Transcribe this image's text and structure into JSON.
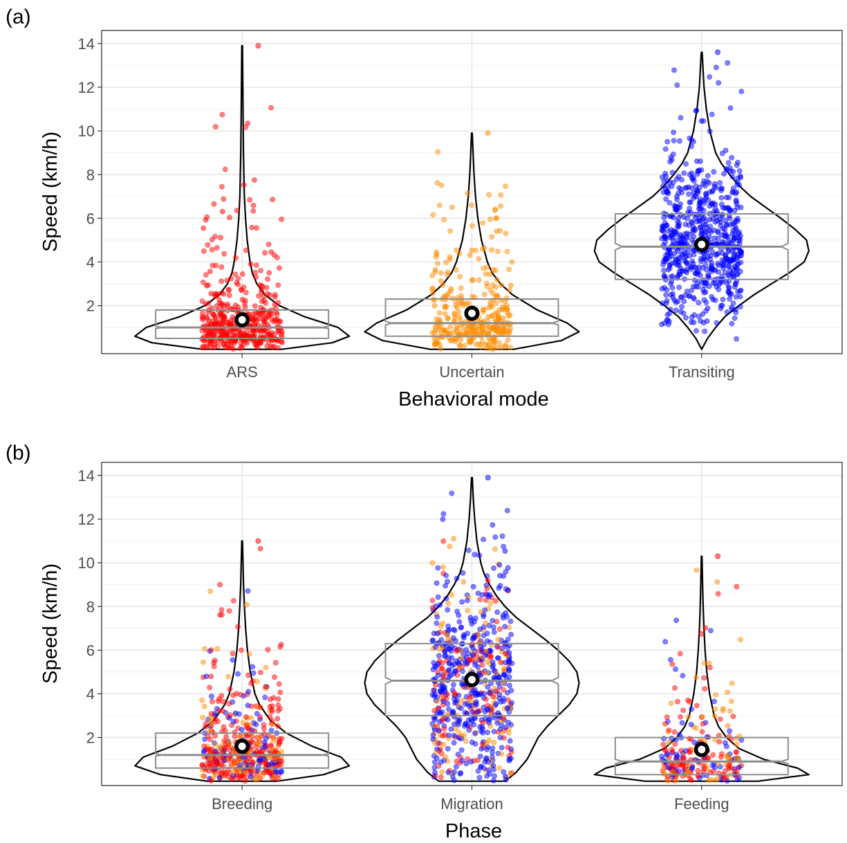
{
  "colors": {
    "ARS": "#ff0000",
    "Uncertain": "#ff8c00",
    "Transiting": "#0000ff",
    "box": "#8c8c8c",
    "violin": "#000000",
    "grid_major": "#e3e3e3",
    "grid_minor": "#f1f1f1"
  },
  "chart_data": [
    {
      "type": "violin",
      "panel_label": "(a)",
      "xlabel": "Behavioral mode",
      "ylabel": "Speed (km/h)",
      "ylim": [
        -0.2,
        14.6
      ],
      "yticks": [
        2,
        4,
        6,
        8,
        10,
        12,
        14
      ],
      "grid": true,
      "categories": [
        "ARS",
        "Uncertain",
        "Transiting"
      ],
      "groups": [
        {
          "category": "ARS",
          "mean": 1.35,
          "box": {
            "q1": 0.5,
            "median": 1.0,
            "q3": 1.8,
            "notch_low": 0.95,
            "notch_high": 1.05
          },
          "violin_profile": [
            [
              0.0,
              0.35
            ],
            [
              0.3,
              0.8
            ],
            [
              0.6,
              0.95
            ],
            [
              1.0,
              0.85
            ],
            [
              1.5,
              0.55
            ],
            [
              2.0,
              0.33
            ],
            [
              2.5,
              0.2
            ],
            [
              3.0,
              0.13
            ],
            [
              3.5,
              0.09
            ],
            [
              4.0,
              0.07
            ],
            [
              5.0,
              0.045
            ],
            [
              6.0,
              0.03
            ],
            [
              7.0,
              0.02
            ],
            [
              9.0,
              0.012
            ],
            [
              11.0,
              0.008
            ],
            [
              13.9,
              0.003
            ]
          ],
          "points": {
            "count": 450,
            "distribution": "right-skewed",
            "max": 13.9,
            "colors": [
              "ARS"
            ]
          }
        },
        {
          "category": "Uncertain",
          "mean": 1.65,
          "box": {
            "q1": 0.6,
            "median": 1.2,
            "q3": 2.3,
            "notch_low": 1.12,
            "notch_high": 1.28
          },
          "violin_profile": [
            [
              0.0,
              0.35
            ],
            [
              0.4,
              0.75
            ],
            [
              0.8,
              0.9
            ],
            [
              1.2,
              0.8
            ],
            [
              1.8,
              0.55
            ],
            [
              2.5,
              0.34
            ],
            [
              3.0,
              0.24
            ],
            [
              3.5,
              0.17
            ],
            [
              4.0,
              0.13
            ],
            [
              5.0,
              0.08
            ],
            [
              6.0,
              0.05
            ],
            [
              7.0,
              0.03
            ],
            [
              8.0,
              0.018
            ],
            [
              9.0,
              0.01
            ],
            [
              9.9,
              0.003
            ]
          ],
          "points": {
            "count": 350,
            "distribution": "right-skewed",
            "max": 9.9,
            "colors": [
              "Uncertain"
            ]
          }
        },
        {
          "category": "Transiting",
          "mean": 4.8,
          "box": {
            "q1": 3.2,
            "median": 4.7,
            "q3": 6.2,
            "notch_low": 4.55,
            "notch_high": 4.85
          },
          "violin_profile": [
            [
              0.0,
              0.0
            ],
            [
              0.5,
              0.05
            ],
            [
              1.0,
              0.12
            ],
            [
              1.5,
              0.2
            ],
            [
              2.0,
              0.32
            ],
            [
              2.5,
              0.45
            ],
            [
              3.0,
              0.6
            ],
            [
              3.5,
              0.75
            ],
            [
              4.0,
              0.88
            ],
            [
              4.5,
              0.92
            ],
            [
              5.0,
              0.9
            ],
            [
              5.5,
              0.8
            ],
            [
              6.0,
              0.68
            ],
            [
              6.5,
              0.55
            ],
            [
              7.0,
              0.42
            ],
            [
              7.5,
              0.32
            ],
            [
              8.0,
              0.24
            ],
            [
              8.5,
              0.17
            ],
            [
              9.0,
              0.12
            ],
            [
              10.0,
              0.07
            ],
            [
              11.0,
              0.04
            ],
            [
              12.0,
              0.02
            ],
            [
              13.6,
              0.004
            ]
          ],
          "points": {
            "count": 700,
            "distribution": "near-normal",
            "max": 13.6,
            "colors": [
              "Transiting"
            ]
          }
        }
      ]
    },
    {
      "type": "violin",
      "panel_label": "(b)",
      "xlabel": "Phase",
      "ylabel": "Speed (km/h)",
      "ylim": [
        -0.2,
        14.6
      ],
      "yticks": [
        2,
        4,
        6,
        8,
        10,
        12,
        14
      ],
      "grid": true,
      "categories": [
        "Breeding",
        "Migration",
        "Feeding"
      ],
      "groups": [
        {
          "category": "Breeding",
          "mean": 1.6,
          "box": {
            "q1": 0.6,
            "median": 1.2,
            "q3": 2.2,
            "notch_low": 1.15,
            "notch_high": 1.25
          },
          "violin_profile": [
            [
              0.0,
              0.3
            ],
            [
              0.3,
              0.7
            ],
            [
              0.7,
              0.92
            ],
            [
              1.1,
              0.85
            ],
            [
              1.6,
              0.6
            ],
            [
              2.2,
              0.38
            ],
            [
              2.8,
              0.24
            ],
            [
              3.5,
              0.15
            ],
            [
              4.0,
              0.11
            ],
            [
              5.0,
              0.07
            ],
            [
              6.0,
              0.045
            ],
            [
              7.0,
              0.03
            ],
            [
              8.0,
              0.02
            ],
            [
              9.0,
              0.012
            ],
            [
              11.0,
              0.003
            ]
          ],
          "points": {
            "count": 500,
            "distribution": "right-skewed",
            "max": 11.0,
            "colors": [
              "ARS",
              "ARS",
              "ARS",
              "Uncertain",
              "Transiting"
            ]
          }
        },
        {
          "category": "Migration",
          "mean": 4.65,
          "box": {
            "q1": 3.0,
            "median": 4.6,
            "q3": 6.3,
            "notch_low": 4.45,
            "notch_high": 4.75
          },
          "violin_profile": [
            [
              0.0,
              0.3
            ],
            [
              0.4,
              0.4
            ],
            [
              1.0,
              0.5
            ],
            [
              1.5,
              0.55
            ],
            [
              2.0,
              0.6
            ],
            [
              2.5,
              0.68
            ],
            [
              3.0,
              0.78
            ],
            [
              3.5,
              0.88
            ],
            [
              4.0,
              0.95
            ],
            [
              4.5,
              0.97
            ],
            [
              5.0,
              0.95
            ],
            [
              5.5,
              0.88
            ],
            [
              6.0,
              0.78
            ],
            [
              6.5,
              0.66
            ],
            [
              7.0,
              0.53
            ],
            [
              7.5,
              0.4
            ],
            [
              8.0,
              0.3
            ],
            [
              8.5,
              0.22
            ],
            [
              9.0,
              0.16
            ],
            [
              9.5,
              0.11
            ],
            [
              10.0,
              0.08
            ],
            [
              11.0,
              0.045
            ],
            [
              12.0,
              0.025
            ],
            [
              13.0,
              0.012
            ],
            [
              13.9,
              0.004
            ]
          ],
          "points": {
            "count": 700,
            "distribution": "near-normal",
            "max": 13.9,
            "colors": [
              "Transiting",
              "Transiting",
              "Transiting",
              "Transiting",
              "Uncertain",
              "ARS"
            ]
          }
        },
        {
          "category": "Feeding",
          "mean": 1.45,
          "box": {
            "q1": 0.3,
            "median": 0.9,
            "q3": 2.0,
            "notch_low": 0.8,
            "notch_high": 1.0
          },
          "violin_profile": [
            [
              0.0,
              0.5
            ],
            [
              0.3,
              0.95
            ],
            [
              0.6,
              0.85
            ],
            [
              1.0,
              0.55
            ],
            [
              1.5,
              0.33
            ],
            [
              2.0,
              0.22
            ],
            [
              2.5,
              0.15
            ],
            [
              3.0,
              0.11
            ],
            [
              4.0,
              0.07
            ],
            [
              5.0,
              0.045
            ],
            [
              6.0,
              0.03
            ],
            [
              7.0,
              0.02
            ],
            [
              8.0,
              0.013
            ],
            [
              9.0,
              0.008
            ],
            [
              10.3,
              0.003
            ]
          ],
          "points": {
            "count": 260,
            "distribution": "right-skewed",
            "max": 10.3,
            "colors": [
              "ARS",
              "ARS",
              "Uncertain",
              "Transiting"
            ]
          }
        }
      ]
    }
  ]
}
